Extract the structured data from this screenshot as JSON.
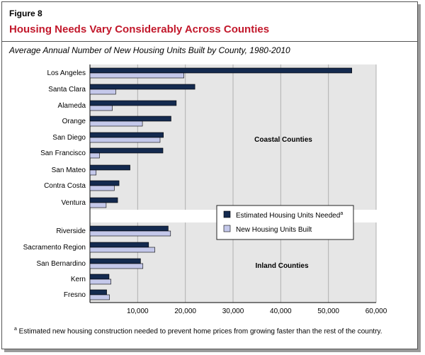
{
  "figure": {
    "label": "Figure 8",
    "title": "Housing Needs Vary Considerably Across Counties",
    "subtitle": "Average Annual Number of New Housing Units Built by County, 1980-2010",
    "footnote_marker": "a",
    "footnote": " Estimated new housing construction needed to prevent home prices from growing faster than the rest of the country."
  },
  "colors": {
    "needed": "#142a4f",
    "built": "#c4c8ea",
    "plot_bg": "#e6e6e6",
    "gridline": "#b0b0b0"
  },
  "chart_data": {
    "type": "bar",
    "orientation": "horizontal",
    "title": "",
    "xlabel": "",
    "ylabel": "",
    "xlim": [
      0,
      60000
    ],
    "x_ticks": [
      "10,000",
      "20,000",
      "30,000",
      "40,000",
      "50,000",
      "60,000"
    ],
    "grid": true,
    "legend_position": "center-right",
    "groups": [
      {
        "name": "Coastal Counties",
        "categories": [
          "Los Angeles",
          "Santa Clara",
          "Alameda",
          "Orange",
          "San Diego",
          "San Francisco",
          "San Mateo",
          "Contra Costa",
          "Ventura"
        ]
      },
      {
        "name": "Inland Counties",
        "categories": [
          "Riverside",
          "Sacramento Region",
          "San Bernardino",
          "Kern",
          "Fresno"
        ]
      }
    ],
    "categories": [
      "Los Angeles",
      "Santa Clara",
      "Alameda",
      "Orange",
      "San Diego",
      "San Francisco",
      "San Mateo",
      "Contra Costa",
      "Ventura",
      "Riverside",
      "Sacramento Region",
      "San Bernardino",
      "Kern",
      "Fresno"
    ],
    "series": [
      {
        "name": "Estimated Housing Units Needed",
        "name_sup": "a",
        "values": [
          54900,
          22000,
          18100,
          17000,
          15400,
          15300,
          8400,
          6100,
          5800,
          16400,
          12300,
          10600,
          4000,
          3500
        ]
      },
      {
        "name": "New Housing Units Built",
        "values": [
          19700,
          5400,
          4700,
          11000,
          14700,
          2000,
          1300,
          5100,
          3400,
          16900,
          13600,
          11100,
          4400,
          4100
        ]
      }
    ]
  }
}
